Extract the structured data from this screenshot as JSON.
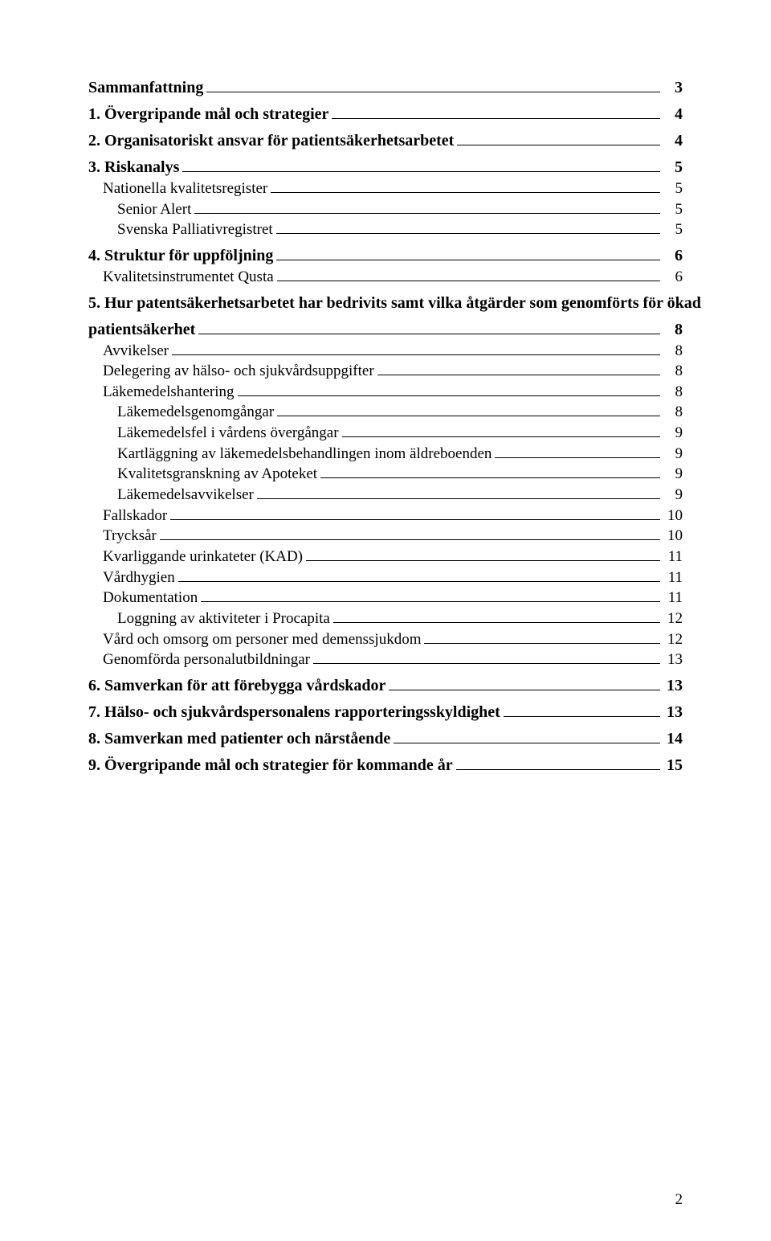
{
  "toc": {
    "entries": [
      {
        "level": 0,
        "label": "Sammanfattning",
        "page": "3"
      },
      {
        "level": 0,
        "label": "1. Övergripande mål och strategier",
        "page": "4"
      },
      {
        "level": 0,
        "label": "2. Organisatoriskt ansvar för patientsäkerhetsarbetet",
        "page": "4"
      },
      {
        "level": 0,
        "label": "3. Riskanalys",
        "page": "5"
      },
      {
        "level": 1,
        "label": "Nationella kvalitetsregister",
        "page": "5"
      },
      {
        "level": 2,
        "label": "Senior Alert",
        "page": "5"
      },
      {
        "level": 2,
        "label": "Svenska Palliativregistret",
        "page": "5"
      },
      {
        "level": 0,
        "label": "4. Struktur för uppföljning",
        "page": "6"
      },
      {
        "level": 1,
        "label": "Kvalitetsinstrumentet Qusta",
        "page": "6"
      },
      {
        "level": 0,
        "label": "5. Hur patentsäkerhetsarbetet har bedrivits samt vilka åtgärder som genomförts för ökad patientsäkerhet",
        "page": "8",
        "wrap": true
      },
      {
        "level": 1,
        "label": "Avvikelser",
        "page": "8"
      },
      {
        "level": 1,
        "label": "Delegering av hälso- och sjukvårdsuppgifter",
        "page": "8"
      },
      {
        "level": 1,
        "label": "Läkemedelshantering",
        "page": "8"
      },
      {
        "level": 2,
        "label": "Läkemedelsgenomgångar",
        "page": "8"
      },
      {
        "level": 2,
        "label": "Läkemedelsfel i vårdens övergångar",
        "page": "9"
      },
      {
        "level": 2,
        "label": "Kartläggning av läkemedelsbehandlingen inom äldreboenden",
        "page": "9"
      },
      {
        "level": 2,
        "label": "Kvalitetsgranskning av Apoteket",
        "page": "9"
      },
      {
        "level": 2,
        "label": "Läkemedelsavvikelser",
        "page": "9"
      },
      {
        "level": 1,
        "label": "Fallskador",
        "page": "10"
      },
      {
        "level": 1,
        "label": "Trycksår",
        "page": "10"
      },
      {
        "level": 1,
        "label": "Kvarliggande urinkateter (KAD)",
        "page": "11"
      },
      {
        "level": 1,
        "label": "Vårdhygien",
        "page": "11"
      },
      {
        "level": 1,
        "label": "Dokumentation",
        "page": "11"
      },
      {
        "level": 2,
        "label": "Loggning av aktiviteter i Procapita",
        "page": "12"
      },
      {
        "level": 1,
        "label": "Vård och omsorg om personer med demenssjukdom",
        "page": "12"
      },
      {
        "level": 1,
        "label": "Genomförda personalutbildningar",
        "page": "13"
      },
      {
        "level": 0,
        "label": "6. Samverkan för att förebygga vårdskador",
        "page": "13"
      },
      {
        "level": 0,
        "label": "7. Hälso- och sjukvårdspersonalens rapporteringsskyldighet",
        "page": "13"
      },
      {
        "level": 0,
        "label": "8. Samverkan med patienter och närstående",
        "page": "14"
      },
      {
        "level": 0,
        "label": "9. Övergripande mål och strategier för kommande år",
        "page": "15"
      }
    ]
  },
  "pageNumber": "2"
}
